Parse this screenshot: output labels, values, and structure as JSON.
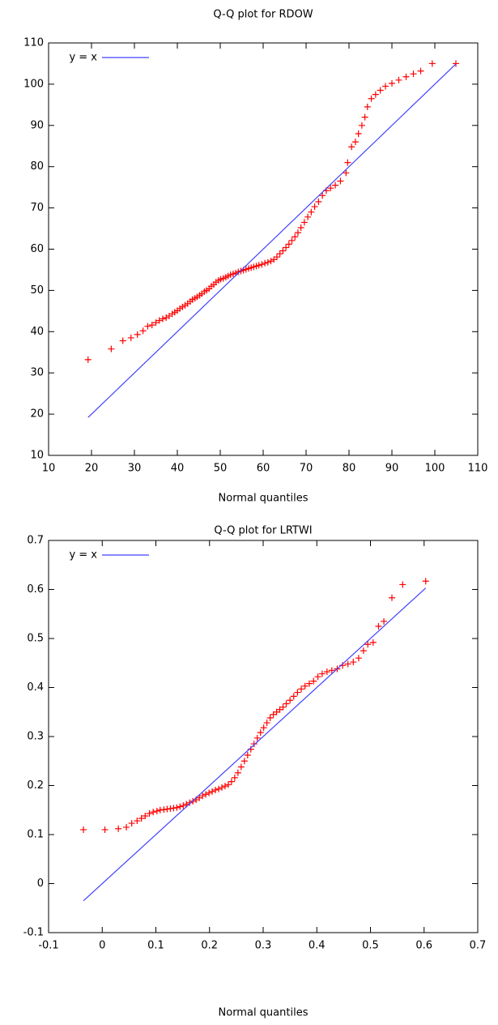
{
  "chart_data": [
    {
      "type": "scatter",
      "title": "Q-Q plot for RDOW",
      "x_label": "Normal quantiles",
      "xlim": [
        10,
        110
      ],
      "ylim": [
        10,
        110
      ],
      "xticks": [
        10,
        20,
        30,
        40,
        50,
        60,
        70,
        80,
        90,
        100,
        110
      ],
      "yticks": [
        10,
        20,
        30,
        40,
        50,
        60,
        70,
        80,
        90,
        100,
        110
      ],
      "legend": "upper left",
      "series": [
        {
          "color": "#ff0000",
          "marker": "+",
          "x": [
            19.2,
            24.6,
            27.3,
            29.2,
            30.7,
            32,
            33.1,
            34.1,
            35,
            35.8,
            36.6,
            37.4,
            38.1,
            38.8,
            39.4,
            40,
            40.6,
            41.2,
            41.8,
            42.4,
            43,
            43.5,
            44.1,
            44.6,
            45.2,
            45.7,
            46.3,
            46.8,
            47.4,
            47.9,
            48.5,
            49,
            49.6,
            50.1,
            50.7,
            51.3,
            51.8,
            52.4,
            53,
            53.6,
            54.2,
            54.8,
            55.4,
            56,
            56.6,
            57.2,
            57.8,
            58.4,
            59,
            59.7,
            60.4,
            61.1,
            61.8,
            62.5,
            63.2,
            63.9,
            64.6,
            65.3,
            66,
            66.7,
            67.4,
            68.1,
            68.8,
            69.6,
            70.4,
            71.2,
            72,
            72.9,
            73.8,
            74.7,
            75.7,
            76.8,
            78,
            79.3,
            79.7,
            80.6,
            81.5,
            82.2,
            83,
            83.7,
            84.3,
            85.2,
            86.2,
            87.3,
            88.5,
            90,
            91.6,
            93.3,
            95,
            96.7,
            99.4,
            104.9
          ],
          "values": [
            33.2,
            35.8,
            37.8,
            38.5,
            39.3,
            40.2,
            41.3,
            41.6,
            42.2,
            42.7,
            43.1,
            43.4,
            43.8,
            44.3,
            44.7,
            45.1,
            45.6,
            46,
            46.4,
            46.8,
            47.3,
            47.8,
            48.1,
            48.4,
            48.8,
            49.2,
            49.7,
            50,
            50.4,
            51,
            51.4,
            52,
            52.4,
            52.7,
            52.9,
            53.2,
            53.5,
            53.8,
            54,
            54.2,
            54.5,
            54.7,
            54.9,
            55.1,
            55.3,
            55.5,
            55.7,
            55.9,
            56.1,
            56.3,
            56.6,
            56.8,
            57.1,
            57.5,
            58.1,
            58.9,
            59.6,
            60.4,
            61.2,
            62.1,
            63,
            64,
            65.2,
            66.5,
            67.8,
            69,
            70.3,
            71.5,
            73,
            74.2,
            74.8,
            75.5,
            76.5,
            78.5,
            81,
            84.8,
            86,
            88,
            90,
            92,
            94.5,
            96.5,
            97.5,
            98.5,
            99.5,
            100.2,
            101,
            101.8,
            102.5,
            103.2,
            105,
            105
          ]
        },
        {
          "name": "y = x",
          "type": "line",
          "color": "#4040ff",
          "x": [
            19.2,
            104.9
          ],
          "values": [
            19.2,
            104.9
          ]
        }
      ]
    },
    {
      "type": "scatter",
      "title": "Q-Q plot for LRTWI",
      "x_label": "Normal quantiles",
      "xlim": [
        -0.1,
        0.7
      ],
      "ylim": [
        -0.1,
        0.7
      ],
      "xticks": [
        -0.1,
        0,
        0.1,
        0.2,
        0.3,
        0.4,
        0.5,
        0.6,
        0.7
      ],
      "yticks": [
        -0.1,
        0,
        0.1,
        0.2,
        0.3,
        0.4,
        0.5,
        0.6,
        0.7
      ],
      "legend": "upper left",
      "series": [
        {
          "color": "#ff0000",
          "marker": "+",
          "x": [
            -0.035,
            0.005,
            0.03,
            0.045,
            0.055,
            0.065,
            0.073,
            0.08,
            0.088,
            0.095,
            0.102,
            0.108,
            0.115,
            0.121,
            0.127,
            0.133,
            0.139,
            0.145,
            0.151,
            0.157,
            0.163,
            0.169,
            0.175,
            0.181,
            0.187,
            0.193,
            0.199,
            0.205,
            0.211,
            0.217,
            0.223,
            0.229,
            0.235,
            0.241,
            0.247,
            0.253,
            0.259,
            0.265,
            0.271,
            0.277,
            0.283,
            0.289,
            0.295,
            0.301,
            0.307,
            0.313,
            0.319,
            0.325,
            0.331,
            0.337,
            0.343,
            0.35,
            0.357,
            0.364,
            0.371,
            0.378,
            0.386,
            0.394,
            0.402,
            0.41,
            0.419,
            0.428,
            0.438,
            0.448,
            0.458,
            0.468,
            0.478,
            0.487,
            0.495,
            0.505,
            0.515,
            0.525,
            0.54,
            0.56,
            0.603
          ],
          "values": [
            0.11,
            0.11,
            0.112,
            0.115,
            0.123,
            0.128,
            0.133,
            0.138,
            0.143,
            0.146,
            0.148,
            0.15,
            0.151,
            0.152,
            0.153,
            0.154,
            0.155,
            0.157,
            0.159,
            0.162,
            0.165,
            0.168,
            0.171,
            0.175,
            0.179,
            0.182,
            0.185,
            0.188,
            0.191,
            0.193,
            0.196,
            0.199,
            0.202,
            0.208,
            0.216,
            0.226,
            0.238,
            0.25,
            0.262,
            0.274,
            0.285,
            0.297,
            0.308,
            0.318,
            0.328,
            0.338,
            0.345,
            0.35,
            0.355,
            0.36,
            0.367,
            0.374,
            0.382,
            0.39,
            0.397,
            0.403,
            0.408,
            0.413,
            0.422,
            0.428,
            0.432,
            0.435,
            0.438,
            0.445,
            0.448,
            0.452,
            0.46,
            0.475,
            0.488,
            0.492,
            0.525,
            0.535,
            0.583,
            0.61,
            0.617
          ]
        },
        {
          "name": "y = x",
          "type": "line",
          "color": "#4040ff",
          "x": [
            -0.035,
            0.603
          ],
          "values": [
            -0.035,
            0.603
          ]
        }
      ]
    }
  ]
}
